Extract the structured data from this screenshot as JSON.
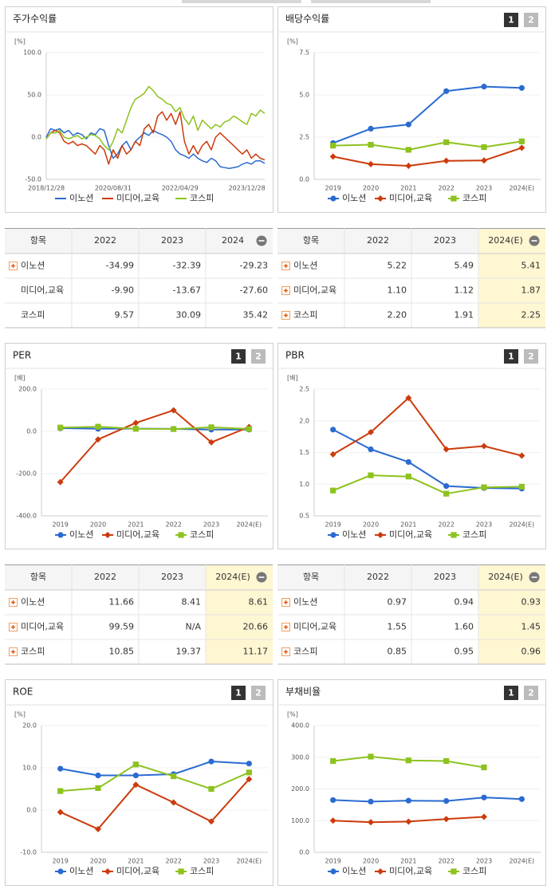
{
  "chart_data": [
    {
      "type": "line",
      "title": "주가수익률",
      "unit": "[%]",
      "categories": [
        "2018/12/28",
        null,
        null,
        null,
        null,
        null,
        null,
        null,
        null,
        null,
        null,
        null,
        null,
        null,
        null,
        "2020/08/31",
        null,
        null,
        null,
        null,
        null,
        null,
        null,
        null,
        null,
        null,
        null,
        null,
        null,
        null,
        "2022/04/29",
        null,
        null,
        null,
        null,
        null,
        null,
        null,
        null,
        null,
        null,
        null,
        null,
        null,
        null,
        "2023/12/28",
        null,
        null,
        null,
        null
      ],
      "ylim": [
        -50,
        100
      ],
      "yticks": [
        {
          "value": -50,
          "label": "-50.0"
        },
        {
          "value": 0,
          "label": "0.0"
        },
        {
          "value": 50,
          "label": "50.0"
        },
        {
          "value": 100,
          "label": "100.0"
        }
      ],
      "series": [
        {
          "name": "이노션",
          "color": "#2a6bd1",
          "values": [
            0,
            10,
            8,
            10,
            5,
            8,
            2,
            5,
            3,
            -2,
            5,
            3,
            10,
            8,
            -10,
            -25,
            -20,
            -10,
            -5,
            -15,
            -5,
            0,
            5,
            2,
            8,
            5,
            3,
            0,
            -5,
            -15,
            -20,
            -22,
            -25,
            -20,
            -25,
            -28,
            -30,
            -25,
            -28,
            -35,
            -36,
            -37,
            -36,
            -35,
            -32,
            -30,
            -32,
            -28,
            -28,
            -31
          ]
        },
        {
          "name": "미디어,교육",
          "color": "#cc3b0c",
          "values": [
            -2,
            5,
            8,
            5,
            -5,
            -8,
            -5,
            -10,
            -8,
            -10,
            -15,
            -20,
            -10,
            -15,
            -32,
            -15,
            -25,
            -10,
            -20,
            -15,
            -5,
            -10,
            10,
            15,
            5,
            25,
            30,
            20,
            28,
            15,
            30,
            -5,
            -20,
            -10,
            -20,
            -10,
            -5,
            -15,
            0,
            5,
            0,
            -5,
            -10,
            -15,
            -20,
            -15,
            -25,
            -20,
            -25,
            -27
          ]
        },
        {
          "name": "코스피",
          "color": "#8dc21f",
          "values": [
            -2,
            5,
            5,
            8,
            0,
            -2,
            0,
            2,
            -2,
            0,
            3,
            2,
            -2,
            -10,
            -15,
            -5,
            10,
            5,
            20,
            35,
            45,
            48,
            52,
            60,
            55,
            48,
            45,
            40,
            38,
            30,
            35,
            22,
            15,
            25,
            8,
            20,
            15,
            10,
            15,
            12,
            18,
            20,
            25,
            22,
            18,
            15,
            28,
            25,
            32,
            28
          ]
        }
      ]
    },
    {
      "type": "line",
      "markers": true,
      "title": "배당수익률",
      "buttons": [
        "1",
        "2"
      ],
      "unit": "[%]",
      "categories": [
        "2019",
        "2020",
        "2021",
        "2022",
        "2023",
        "2024(E)"
      ],
      "ylim": [
        0,
        7.5
      ],
      "yticks": [
        {
          "value": 0,
          "label": "0.0"
        },
        {
          "value": 2.5,
          "label": "2.5"
        },
        {
          "value": 5,
          "label": "5.0"
        },
        {
          "value": 7.5,
          "label": "7.5"
        }
      ],
      "series": [
        {
          "name": "이노션",
          "color": "#2a6bd1",
          "marker": "circle",
          "values": [
            2.15,
            3.0,
            3.25,
            5.22,
            5.49,
            5.41
          ]
        },
        {
          "name": "미디어,교육",
          "color": "#cc3b0c",
          "marker": "diamond",
          "values": [
            1.35,
            0.9,
            0.8,
            1.1,
            1.12,
            1.87
          ]
        },
        {
          "name": "코스피",
          "color": "#8dc21f",
          "marker": "square",
          "values": [
            2.0,
            2.05,
            1.75,
            2.2,
            1.91,
            2.25
          ]
        }
      ]
    },
    {
      "type": "line",
      "markers": true,
      "title": "PER",
      "buttons": [
        "1",
        "2"
      ],
      "unit": "[배]",
      "categories": [
        "2019",
        "2020",
        "2021",
        "2022",
        "2023",
        "2024(E)"
      ],
      "ylim": [
        -400,
        200
      ],
      "yticks": [
        {
          "value": -400,
          "label": "-400.0"
        },
        {
          "value": -200,
          "label": "-200.0"
        },
        {
          "value": 0,
          "label": "0.0"
        },
        {
          "value": 200,
          "label": "200.0"
        }
      ],
      "series": [
        {
          "name": "이노션",
          "color": "#2a6bd1",
          "marker": "circle",
          "values": [
            15,
            12,
            13,
            11.66,
            8.41,
            8.61
          ]
        },
        {
          "name": "미디어,교육",
          "color": "#cc3b0c",
          "marker": "diamond",
          "values": [
            -240,
            -38,
            40,
            99.59,
            -52,
            20.66
          ]
        },
        {
          "name": "코스피",
          "color": "#8dc21f",
          "marker": "square",
          "values": [
            18,
            22,
            12,
            10.85,
            19.37,
            11.17
          ]
        }
      ]
    },
    {
      "type": "line",
      "markers": true,
      "title": "PBR",
      "buttons": [
        "1",
        "2"
      ],
      "unit": "[배]",
      "categories": [
        "2019",
        "2020",
        "2021",
        "2022",
        "2023",
        "2024(E)"
      ],
      "ylim": [
        0.5,
        2.5
      ],
      "yticks": [
        0.5,
        {
          "value": 1,
          "label": "1.0"
        },
        1.5,
        {
          "value": 2,
          "label": "2.0"
        },
        2.5
      ],
      "series": [
        {
          "name": "이노션",
          "color": "#2a6bd1",
          "marker": "circle",
          "values": [
            1.86,
            1.55,
            1.35,
            0.97,
            0.94,
            0.93
          ]
        },
        {
          "name": "미디어,교육",
          "color": "#cc3b0c",
          "marker": "diamond",
          "values": [
            1.47,
            1.82,
            2.36,
            1.55,
            1.6,
            1.45
          ]
        },
        {
          "name": "코스피",
          "color": "#8dc21f",
          "marker": "square",
          "values": [
            0.9,
            1.14,
            1.12,
            0.85,
            0.95,
            0.96
          ]
        }
      ]
    },
    {
      "type": "line",
      "markers": true,
      "title": "ROE",
      "buttons": [
        "1",
        "2"
      ],
      "unit": "[%]",
      "categories": [
        "2019",
        "2020",
        "2021",
        "2022",
        "2023",
        "2024(E)"
      ],
      "ylim": [
        -10,
        20
      ],
      "yticks": [
        {
          "value": -10,
          "label": "-10.0"
        },
        {
          "value": 0,
          "label": "0.0"
        },
        {
          "value": 10,
          "label": "10.0"
        },
        {
          "value": 20,
          "label": "20.0"
        }
      ],
      "series": [
        {
          "name": "이노션",
          "color": "#2a6bd1",
          "marker": "circle",
          "values": [
            9.8,
            8.2,
            8.2,
            8.5,
            11.5,
            11
          ]
        },
        {
          "name": "미디어,교육",
          "color": "#cc3b0c",
          "marker": "diamond",
          "values": [
            -0.5,
            -4.5,
            6,
            1.8,
            -2.7,
            7.3
          ]
        },
        {
          "name": "코스피",
          "color": "#8dc21f",
          "marker": "square",
          "values": [
            4.5,
            5.2,
            10.8,
            8,
            5,
            8.9
          ]
        }
      ]
    },
    {
      "type": "line",
      "markers": true,
      "title": "부채비율",
      "buttons": [
        "1",
        "2"
      ],
      "unit": "[%]",
      "categories": [
        "2019",
        "2020",
        "2021",
        "2022",
        "2023",
        "2024(E)"
      ],
      "ylim": [
        0,
        400
      ],
      "yticks": [
        {
          "value": 0,
          "label": "0.0"
        },
        {
          "value": 100,
          "label": "100.0"
        },
        {
          "value": 200,
          "label": "200.0"
        },
        {
          "value": 300,
          "label": "300.0"
        },
        {
          "value": 400,
          "label": "400.0"
        }
      ],
      "series": [
        {
          "name": "이노션",
          "color": "#2a6bd1",
          "marker": "circle",
          "values": [
            165,
            160,
            163,
            162,
            173,
            168
          ]
        },
        {
          "name": "미디어,교육",
          "color": "#cc3b0c",
          "marker": "diamond",
          "values": [
            100,
            95,
            97,
            105,
            112,
            null
          ]
        },
        {
          "name": "코스피",
          "color": "#8dc21f",
          "marker": "square",
          "values": [
            288,
            302,
            290,
            288,
            268,
            null
          ]
        }
      ]
    }
  ],
  "tables": [
    {
      "header": [
        "항목",
        "2022",
        "2023",
        "2024"
      ],
      "collapsible": true,
      "highlight_last": false,
      "rows": [
        {
          "label": "이노션",
          "expandable": true,
          "cells": [
            "-34.99",
            "-32.39",
            "-29.23"
          ]
        },
        {
          "label": "미디어,교육",
          "expandable": false,
          "cells": [
            "-9.90",
            "-13.67",
            "-27.60"
          ]
        },
        {
          "label": "코스피",
          "expandable": false,
          "cells": [
            "9.57",
            "30.09",
            "35.42"
          ]
        }
      ]
    },
    {
      "header": [
        "항목",
        "2022",
        "2023",
        "2024(E)"
      ],
      "collapsible": true,
      "highlight_last": true,
      "rows": [
        {
          "label": "이노션",
          "expandable": true,
          "cells": [
            "5.22",
            "5.49",
            "5.41"
          ]
        },
        {
          "label": "미디어,교육",
          "expandable": true,
          "cells": [
            "1.10",
            "1.12",
            "1.87"
          ]
        },
        {
          "label": "코스피",
          "expandable": true,
          "cells": [
            "2.20",
            "1.91",
            "2.25"
          ]
        }
      ]
    },
    {
      "header": [
        "항목",
        "2022",
        "2023",
        "2024(E)"
      ],
      "collapsible": true,
      "highlight_last": true,
      "rows": [
        {
          "label": "이노션",
          "expandable": true,
          "cells": [
            "11.66",
            "8.41",
            "8.61"
          ]
        },
        {
          "label": "미디어,교육",
          "expandable": true,
          "cells": [
            "99.59",
            "N/A",
            "20.66"
          ]
        },
        {
          "label": "코스피",
          "expandable": true,
          "cells": [
            "10.85",
            "19.37",
            "11.17"
          ]
        }
      ]
    },
    {
      "header": [
        "항목",
        "2022",
        "2023",
        "2024(E)"
      ],
      "collapsible": true,
      "highlight_last": true,
      "rows": [
        {
          "label": "이노션",
          "expandable": true,
          "cells": [
            "0.97",
            "0.94",
            "0.93"
          ]
        },
        {
          "label": "미디어,교육",
          "expandable": true,
          "cells": [
            "1.55",
            "1.60",
            "1.45"
          ]
        },
        {
          "label": "코스피",
          "expandable": true,
          "cells": [
            "0.85",
            "0.95",
            "0.96"
          ]
        }
      ]
    }
  ]
}
